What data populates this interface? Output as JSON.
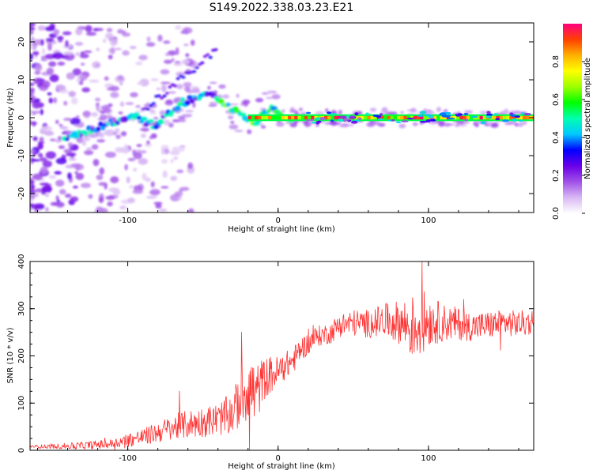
{
  "title": "S149.2022.338.03.23.E21",
  "chart_data": [
    {
      "type": "heatmap",
      "xlabel": "Height of straight line (km)",
      "ylabel": "Frequency (Hz)",
      "xlim": [
        -165,
        170
      ],
      "ylim": [
        -25,
        25
      ],
      "x_ticks": [
        -100,
        0,
        100
      ],
      "y_ticks": [
        -20,
        -10,
        0,
        10,
        20
      ],
      "trace": {
        "x": [
          -140,
          -132,
          -124,
          -116,
          -108,
          -100,
          -94,
          -88,
          -82,
          -76,
          -70,
          -64,
          -58,
          -52,
          -46,
          -40,
          -34,
          -28,
          -22,
          -16,
          -10,
          -5,
          0,
          5,
          10,
          30,
          60,
          90,
          120,
          150,
          168
        ],
        "y": [
          -5,
          -4.5,
          -3,
          -2,
          -1,
          0,
          0.5,
          -1,
          -2,
          0,
          2,
          4,
          5,
          5.5,
          6,
          5.5,
          3,
          1.5,
          0,
          -2,
          1.5,
          2.5,
          0.5,
          0,
          0,
          0,
          0,
          0,
          0,
          0,
          0
        ]
      },
      "colorbar": {
        "label": "Normalized spectral amplitude",
        "min": 0,
        "max": 1,
        "ticks": [
          0.0,
          0.2,
          0.4,
          0.6,
          0.8
        ],
        "tick_labels": [
          "0.0",
          "0.2",
          "0.4",
          "0.6",
          "0.8"
        ],
        "stops": [
          "#ffffff",
          "#d8b8f4",
          "#a050e8",
          "#6a00e8",
          "#0000ff",
          "#00c8ff",
          "#00ffb0",
          "#00ff00",
          "#9cff00",
          "#ffff00",
          "#ffb000",
          "#ff4000",
          "#ff0080"
        ]
      }
    },
    {
      "type": "line",
      "xlabel": "Height of straight line (km)",
      "ylabel": "SNR (10 * v/v)",
      "xlim": [
        -165,
        170
      ],
      "ylim": [
        0,
        400
      ],
      "x_ticks": [
        -100,
        0,
        100
      ],
      "y_ticks": [
        0,
        100,
        200,
        300,
        400
      ],
      "color": "#ff3333",
      "series": [
        {
          "name": "SNR",
          "x": [
            -165,
            -150,
            -130,
            -110,
            -100,
            -90,
            -80,
            -70,
            -60,
            -50,
            -40,
            -30,
            -25,
            -20,
            -15,
            -10,
            -5,
            0,
            5,
            10,
            15,
            20,
            25,
            30,
            35,
            40,
            50,
            60,
            70,
            80,
            90,
            95,
            100,
            110,
            120,
            130,
            140,
            150,
            160,
            170
          ],
          "y": [
            8,
            8,
            10,
            14,
            22,
            28,
            38,
            48,
            55,
            60,
            65,
            80,
            110,
            140,
            115,
            150,
            160,
            165,
            180,
            190,
            215,
            225,
            240,
            245,
            248,
            265,
            270,
            268,
            275,
            272,
            260,
            270,
            275,
            270,
            268,
            262,
            265,
            270,
            268,
            272
          ]
        }
      ],
      "spike_amplitude": [
        3,
        5,
        8,
        10,
        15,
        18,
        22,
        28,
        30,
        32,
        35,
        45,
        60,
        80,
        70,
        45,
        40,
        35,
        30,
        28,
        25,
        24,
        22,
        22,
        22,
        25,
        28,
        30,
        35,
        45,
        70,
        75,
        55,
        40,
        35,
        30,
        30,
        28,
        28,
        28
      ]
    }
  ]
}
